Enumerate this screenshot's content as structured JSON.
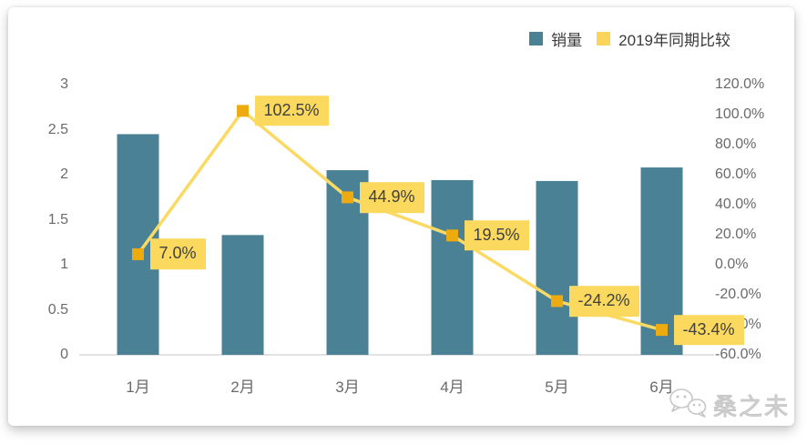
{
  "legend": {
    "items": [
      {
        "label": "销量",
        "color": "#4A8195"
      },
      {
        "label": "2019年同期比较",
        "color": "#FBD45B"
      }
    ]
  },
  "chart_data": {
    "type": "combo",
    "categories": [
      "1月",
      "2月",
      "3月",
      "4月",
      "5月",
      "6月"
    ],
    "series": [
      {
        "name": "销量",
        "type": "bar",
        "axis": "left",
        "color": "#4A8195",
        "values": [
          2.45,
          1.33,
          2.05,
          1.94,
          1.93,
          2.08
        ]
      },
      {
        "name": "2019年同期比较",
        "type": "line",
        "axis": "right",
        "color": "#FBDA63",
        "marker_color": "#EEAB10",
        "label_bg": "#FBD95F",
        "values_pct": [
          7.0,
          102.5,
          44.9,
          19.5,
          -24.2,
          -43.4
        ],
        "point_labels": [
          "7.0%",
          "102.5%",
          "44.9%",
          "19.5%",
          "-24.2%",
          "-43.4%"
        ]
      }
    ],
    "left_axis": {
      "min": 0,
      "max": 3,
      "tick_values": [
        3,
        2.5,
        2,
        1.5,
        1,
        0.5,
        0
      ],
      "tick_labels": [
        "3",
        "2.5",
        "2",
        "1.5",
        "1",
        "0.5",
        "0"
      ]
    },
    "right_axis": {
      "min": -60,
      "max": 120,
      "tick_values": [
        120,
        100,
        80,
        60,
        40,
        20,
        0,
        -20,
        -40,
        -60
      ],
      "tick_labels": [
        "120.0%",
        "100.0%",
        "80.0%",
        "60.0%",
        "40.0%",
        "20.0%",
        "0.0%",
        "-20.0%",
        "-40.0%",
        "-60.0%"
      ]
    },
    "grid": false,
    "legend_position": "top-right"
  },
  "watermark": {
    "text": "桑之未",
    "icon": "wechat-icon"
  }
}
